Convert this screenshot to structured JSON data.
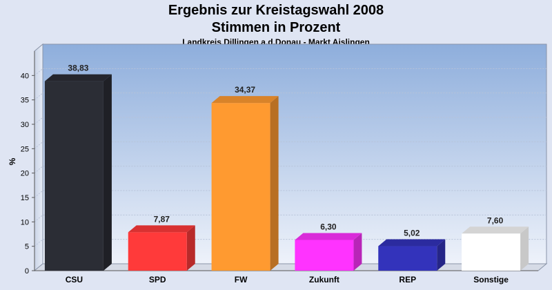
{
  "title": "Ergebnis zur Kreistagswahl 2008",
  "title2": "Stimmen in Prozent",
  "subtitle": "Landkreis Dillingen a.d.Donau - Markt Aislingen",
  "chart_data": {
    "type": "bar",
    "title": "Ergebnis zur Kreistagswahl 2008 Stimmen in Prozent",
    "subtitle": "Landkreis Dillingen a.d.Donau - Markt Aislingen",
    "xlabel": "",
    "ylabel": "%",
    "ylim": [
      0,
      45
    ],
    "yticks": [
      0,
      5,
      10,
      15,
      20,
      25,
      30,
      35,
      40
    ],
    "grid": true,
    "categories": [
      "CSU",
      "SPD",
      "FW",
      "Zukunft",
      "REP",
      "Sonstige"
    ],
    "values": [
      38.83,
      7.87,
      34.37,
      6.3,
      5.02,
      7.6
    ],
    "value_labels": [
      "38,83",
      "7,87",
      "34,37",
      "6,30",
      "5,02",
      "7,60"
    ],
    "colors": [
      "#2b2d35",
      "#ff3a3a",
      "#ff9a30",
      "#ff33ff",
      "#3333bb",
      "#ffffff"
    ]
  }
}
